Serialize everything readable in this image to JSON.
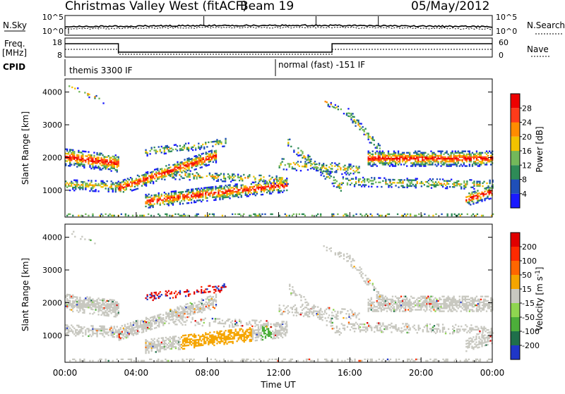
{
  "header": {
    "title": "Christmas Valley West (fitACF)",
    "beam": "Beam 19",
    "date": "05/May/2012"
  },
  "nsky_panel": {
    "left_label": "N.Sky",
    "right_label": "N.Search",
    "left_ticks": [
      "10^5",
      "10^0"
    ],
    "right_ticks": [
      "10^5",
      "10^0"
    ]
  },
  "freq_panel": {
    "left_label_1": "Freq.",
    "left_label_2": "[MHz]",
    "right_label": "Nave",
    "left_ticks": [
      "18",
      "8"
    ],
    "right_ticks": [
      "60",
      "0"
    ]
  },
  "cpid": {
    "label": "CPID",
    "segments": [
      {
        "start_h": 0,
        "text": "themis 3300 IF"
      },
      {
        "start_h": 12,
        "text": "normal (fast) -151 IF"
      }
    ]
  },
  "chart_data": [
    {
      "type": "heatmap",
      "name": "power",
      "ylabel": "Slant Range [km]",
      "y_ticks": [
        "1000",
        "2000",
        "3000",
        "4000"
      ],
      "ylim": [
        180,
        4400
      ],
      "xlim": [
        0,
        24
      ],
      "colorbar": {
        "label": "Power [dB]",
        "ticks": [
          "4",
          "8",
          "12",
          "16",
          "20",
          "24",
          "28"
        ],
        "colors": [
          "#1a1aff",
          "#1f4fb8",
          "#2e8b57",
          "#73b85a",
          "#f2c200",
          "#ff8c00",
          "#ff3b1a",
          "#ee0000"
        ]
      }
    },
    {
      "type": "heatmap",
      "name": "velocity",
      "ylabel": "Slant Range [km]",
      "y_ticks": [
        "1000",
        "2000",
        "3000",
        "4000"
      ],
      "ylim": [
        180,
        4400
      ],
      "xlim": [
        0,
        24
      ],
      "colorbar": {
        "label": "Velocity [m s^-1]",
        "ticks": [
          "200",
          "100",
          "50",
          "15",
          "-15",
          "-50",
          "-100",
          "-200"
        ],
        "colors": [
          "#1f36c8",
          "#1f6f4a",
          "#4cae3a",
          "#8fd650",
          "#c8c8c0",
          "#f5a500",
          "#ff6600",
          "#ff2a00",
          "#e00000"
        ]
      }
    }
  ],
  "xaxis": {
    "ticks": [
      "00:00",
      "04:00",
      "08:00",
      "12:00",
      "16:00",
      "20:00",
      "00:00"
    ],
    "label": "Time UT"
  },
  "colors": {
    "ground_scatter": "#c0c0b8"
  }
}
